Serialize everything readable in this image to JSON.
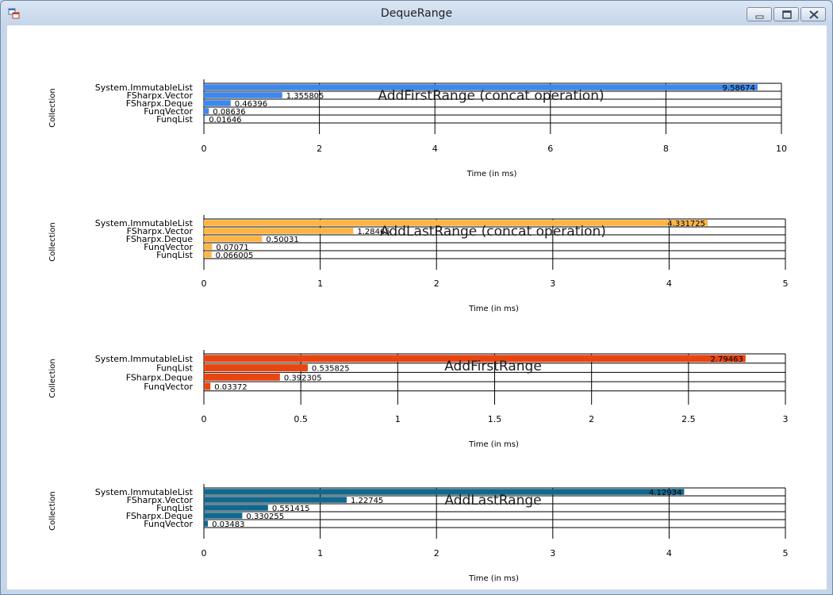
{
  "window": {
    "title": "DequeRange",
    "icon": "app-window-icon",
    "buttons": [
      "minimize-icon",
      "maximize-icon",
      "close-icon"
    ]
  },
  "chart_data": [
    {
      "type": "bar",
      "orientation": "horizontal",
      "title": "AddFirstRange (concat operation)",
      "xlabel": "Time (in ms)",
      "ylabel": "Collection",
      "xlim": [
        0,
        10
      ],
      "xticks": [
        "0",
        "2",
        "4",
        "6",
        "8",
        "10"
      ],
      "grid": true,
      "color": "#3d88ea",
      "categories": [
        "System.ImmutableList",
        "FSharpx.Vector",
        "FSharpx.Deque",
        "FunqVector",
        "FunqList"
      ],
      "values": [
        9.58674,
        1.355805,
        0.46396,
        0.08636,
        0.01646
      ],
      "value_labels": [
        "9.58674",
        "1.355805",
        "0.46396",
        "0.08636",
        "0.01646"
      ]
    },
    {
      "type": "bar",
      "orientation": "horizontal",
      "title": "AddLastRange (concat operation)",
      "xlabel": "Time (in ms)",
      "ylabel": "Collection",
      "xlim": [
        0,
        5
      ],
      "xticks": [
        "0",
        "1",
        "2",
        "3",
        "4",
        "5"
      ],
      "grid": true,
      "color": "#ffb444",
      "categories": [
        "System.ImmutableList",
        "FSharpx.Vector",
        "FSharpx.Deque",
        "FunqVector",
        "FunqList"
      ],
      "values": [
        4.331725,
        1.28465,
        0.50031,
        0.07071,
        0.066005
      ],
      "value_labels": [
        "4.331725",
        "1.28465",
        "0.50031",
        "0.07071",
        "0.066005"
      ]
    },
    {
      "type": "bar",
      "orientation": "horizontal",
      "title": "AddFirstRange",
      "xlabel": "Time (in ms)",
      "ylabel": "Collection",
      "xlim": [
        0,
        3
      ],
      "xticks": [
        "0",
        "0.5",
        "1",
        "1.5",
        "2",
        "2.5",
        "3"
      ],
      "grid": true,
      "color": "#e84511",
      "categories": [
        "System.ImmutableList",
        "FunqList",
        "FSharpx.Deque",
        "FunqVector"
      ],
      "values": [
        2.79463,
        0.535825,
        0.392305,
        0.03372
      ],
      "value_labels": [
        "2.79463",
        "0.535825",
        "0.392305",
        "0.03372"
      ]
    },
    {
      "type": "bar",
      "orientation": "horizontal",
      "title": "AddLastRange",
      "xlabel": "Time (in ms)",
      "ylabel": "Collection",
      "xlim": [
        0,
        5
      ],
      "xticks": [
        "0",
        "1",
        "2",
        "3",
        "4",
        "5"
      ],
      "grid": true,
      "color": "#10688f",
      "categories": [
        "System.ImmutableList",
        "FSharpx.Vector",
        "FunqList",
        "FSharpx.Deque",
        "FunqVector"
      ],
      "values": [
        4.12934,
        1.22745,
        0.551415,
        0.330255,
        0.03483
      ],
      "value_labels": [
        "4.12934",
        "1.22745",
        "0.551415",
        "0.330255",
        "0.03483"
      ]
    }
  ]
}
